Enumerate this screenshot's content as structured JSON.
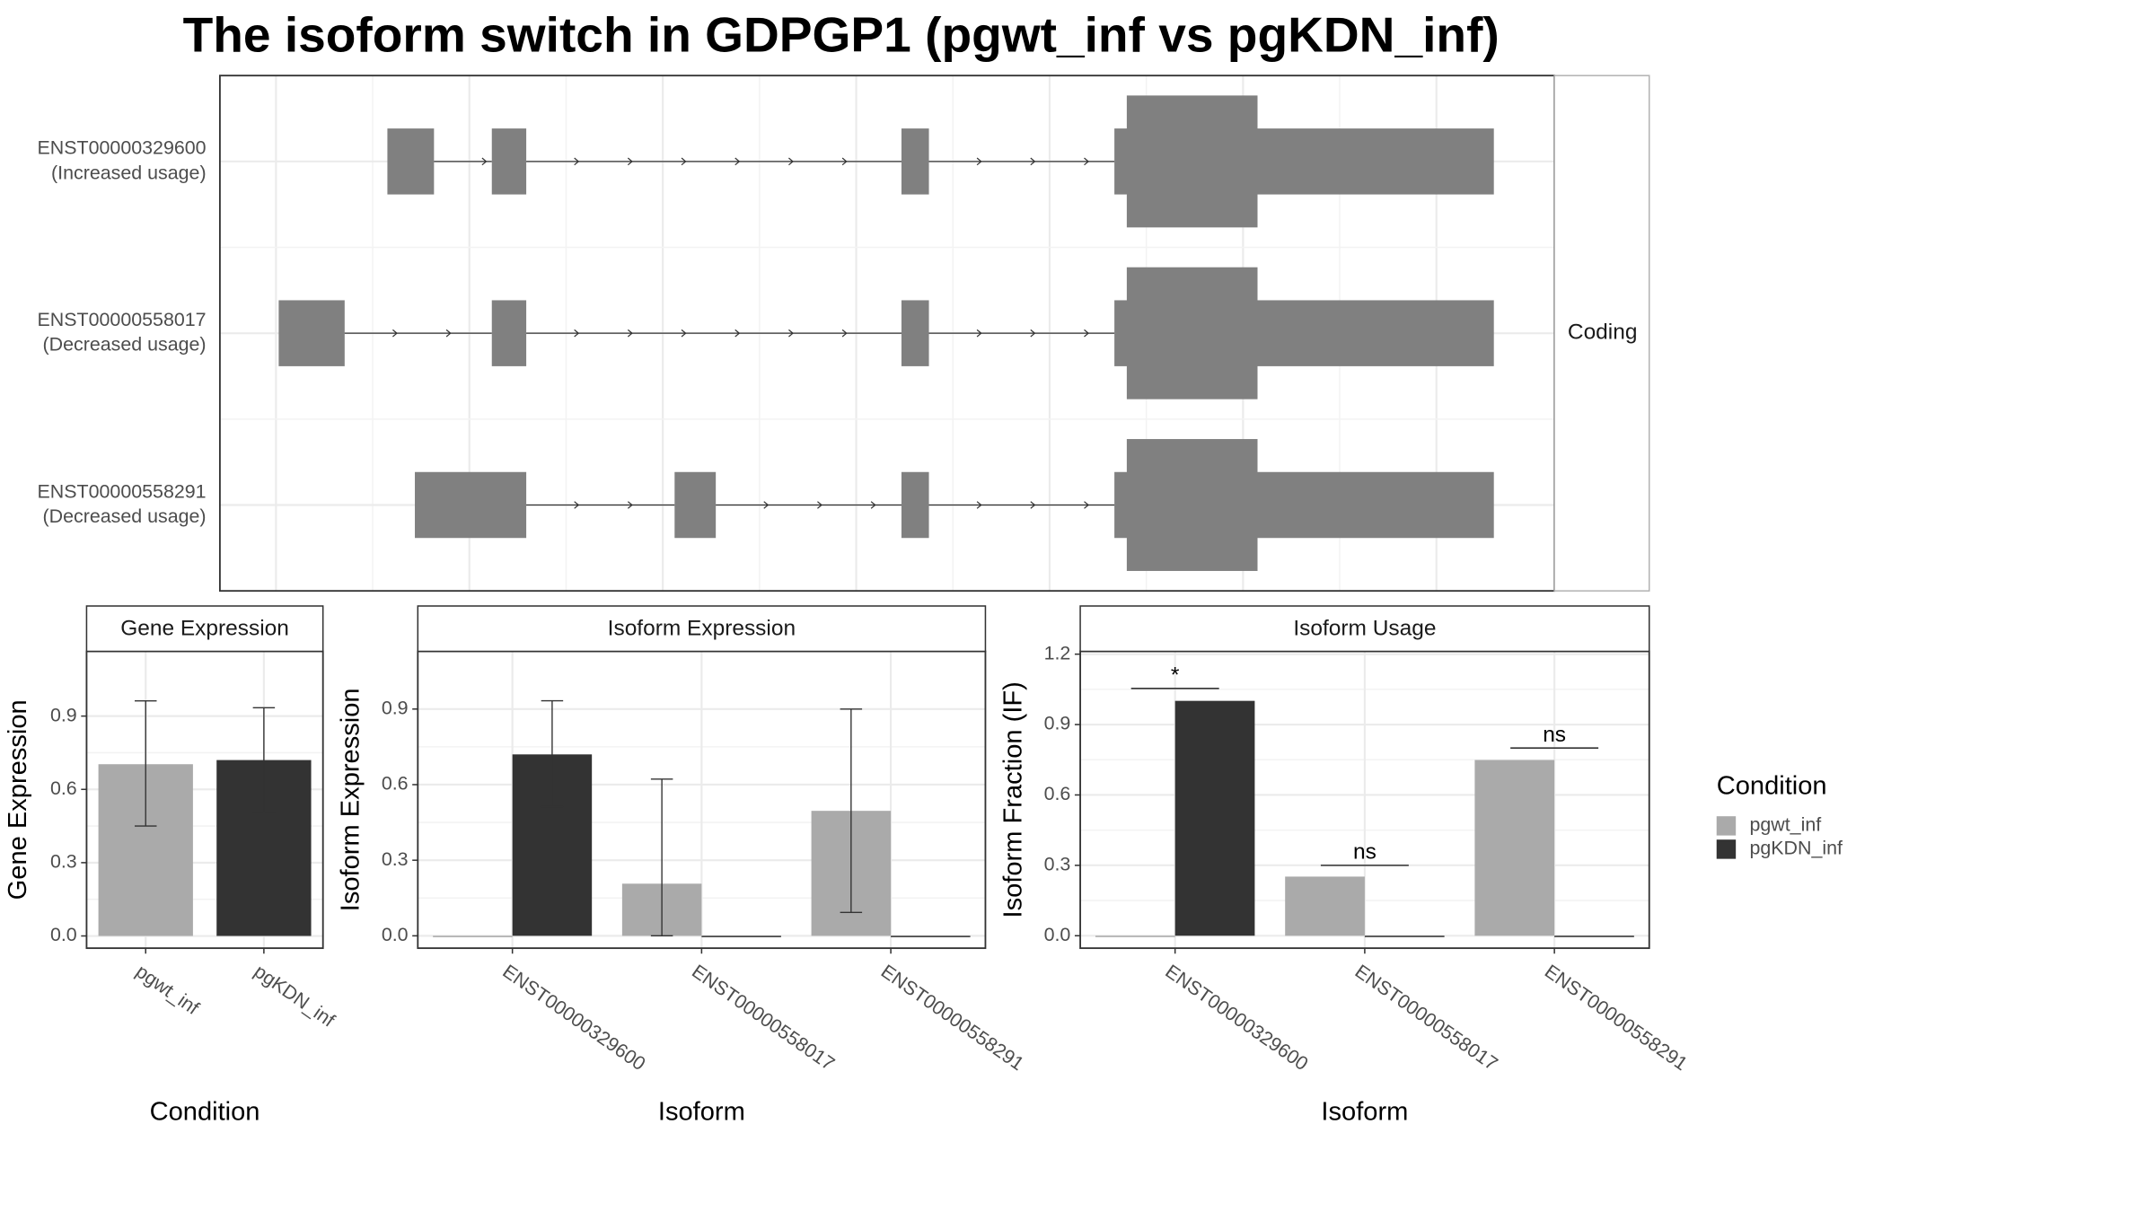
{
  "title": "The isoform switch in GDPGP1 (pgwt_inf vs pgKDN_inf)",
  "legend": {
    "title": "Condition",
    "items": [
      {
        "name": "pgwt_inf",
        "color": "#aaaaaa"
      },
      {
        "name": "pgKDN_inf",
        "color": "#333333"
      }
    ]
  },
  "chart_data": [
    {
      "type": "structure",
      "strip": "Coding",
      "xlim": [
        -0.29,
        6.61
      ],
      "xgrid": [
        0,
        1,
        2,
        3,
        4,
        5,
        6
      ],
      "color": "#808080",
      "transcripts": [
        {
          "name": "ENST00000329600",
          "usage": "(Increased usage)",
          "exons": [
            [
              0.576,
              0.817
            ],
            [
              1.116,
              1.294
            ],
            [
              3.234,
              3.376
            ],
            [
              4.335,
              6.297
            ]
          ],
          "cds": [
            4.399,
            5.075
          ]
        },
        {
          "name": "ENST00000558017",
          "usage": "(Decreased usage)",
          "exons": [
            [
              0.014,
              0.355
            ],
            [
              1.116,
              1.294
            ],
            [
              3.234,
              3.376
            ],
            [
              4.335,
              6.297
            ]
          ],
          "cds": [
            4.399,
            5.075
          ]
        },
        {
          "name": "ENST00000558291",
          "usage": "(Decreased usage)",
          "exons": [
            [
              0.718,
              1.294
            ],
            [
              2.061,
              2.274
            ],
            [
              3.234,
              3.376
            ],
            [
              4.335,
              6.297
            ]
          ],
          "cds": [
            4.399,
            5.075
          ]
        }
      ]
    },
    {
      "type": "bar",
      "strip": "Gene Expression",
      "xlabel": "Condition",
      "ylabel": "Gene Expression",
      "categories": [
        "pgwt_inf",
        "pgKDN_inf"
      ],
      "series": [
        {
          "colors": [
            "#aaaaaa",
            "#333333"
          ],
          "values": [
            0.703,
            0.72
          ],
          "error_low": [
            0.45,
            0.506
          ],
          "error_high": [
            0.962,
            0.934
          ]
        }
      ],
      "ylim": [
        -0.05,
        1.165
      ],
      "yticks": [
        {
          "value": 0,
          "label": "0.0"
        },
        {
          "value": 0.3,
          "label": "0.3"
        },
        {
          "value": 0.6,
          "label": "0.6"
        },
        {
          "value": 0.9,
          "label": "0.9"
        }
      ]
    },
    {
      "type": "grouped_bar",
      "strip": "Isoform Expression",
      "xlabel": "Isoform",
      "ylabel": "Isoform Expression",
      "categories": [
        "ENST00000329600",
        "ENST00000558017",
        "ENST00000558291"
      ],
      "series": [
        {
          "color": "#aaaaaa",
          "values": [
            0,
            0.207,
            0.496
          ],
          "error_low": [
            null,
            0.0,
            0.093
          ],
          "error_high": [
            null,
            0.622,
            0.9
          ]
        },
        {
          "color": "#333333",
          "values": [
            0.72,
            0,
            0
          ],
          "error_low": [
            0.513,
            null,
            null
          ],
          "error_high": [
            0.933,
            null,
            null
          ]
        }
      ],
      "ylim": [
        -0.049,
        1.129
      ],
      "yticks": [
        {
          "value": 0,
          "label": "0.0"
        },
        {
          "value": 0.3,
          "label": "0.3"
        },
        {
          "value": 0.6,
          "label": "0.6"
        },
        {
          "value": 0.9,
          "label": "0.9"
        }
      ]
    },
    {
      "type": "grouped_bar",
      "strip": "Isoform Usage",
      "xlabel": "Isoform",
      "ylabel": "Isoform Fraction (IF)",
      "categories": [
        "ENST00000329600",
        "ENST00000558017",
        "ENST00000558291"
      ],
      "series": [
        {
          "color": "#aaaaaa",
          "values": [
            0,
            0.252,
            0.749
          ]
        },
        {
          "color": "#333333",
          "values": [
            1.001,
            0,
            0
          ]
        }
      ],
      "annotations": [
        "*",
        "ns",
        "ns"
      ],
      "annotation_y": [
        1.054,
        0.3,
        0.8
      ],
      "ylim": [
        -0.053,
        1.212
      ],
      "yticks": [
        {
          "value": 0,
          "label": "0.0"
        },
        {
          "value": 0.3,
          "label": "0.3"
        },
        {
          "value": 0.6,
          "label": "0.6"
        },
        {
          "value": 0.9,
          "label": "0.9"
        },
        {
          "value": 1.2,
          "label": "1.2"
        }
      ]
    }
  ]
}
